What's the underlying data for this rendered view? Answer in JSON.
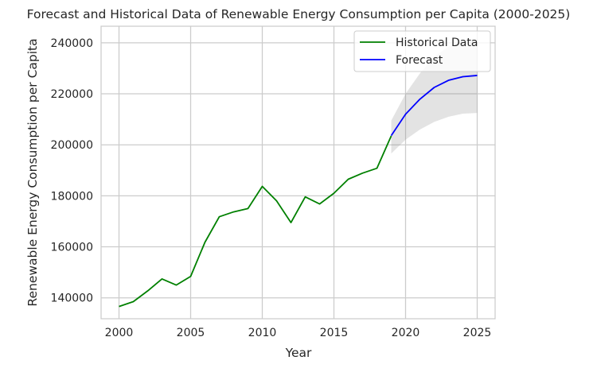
{
  "chart_data": {
    "type": "line",
    "title": "Forecast and Historical Data of Renewable Energy Consumption per Capita (2000-2025)",
    "xlabel": "Year",
    "ylabel": "Renewable Energy Consumption per Capita",
    "xlim": [
      1998.75,
      2026.25
    ],
    "ylim": [
      131800,
      246500
    ],
    "xticks": [
      2000,
      2005,
      2010,
      2015,
      2020,
      2025
    ],
    "yticks": [
      140000,
      160000,
      180000,
      200000,
      220000,
      240000
    ],
    "xtick_labels": [
      "2000",
      "2005",
      "2010",
      "2015",
      "2020",
      "2025"
    ],
    "ytick_labels": [
      "140000",
      "160000",
      "180000",
      "200000",
      "220000",
      "240000"
    ],
    "grid": true,
    "legend_position": "top-right",
    "series": [
      {
        "name": "Historical Data",
        "color": "#008000",
        "x": [
          2000,
          2001,
          2002,
          2003,
          2004,
          2005,
          2006,
          2007,
          2008,
          2009,
          2010,
          2011,
          2012,
          2013,
          2014,
          2015,
          2016,
          2017,
          2018,
          2019
        ],
        "y": [
          136600,
          138500,
          142700,
          147400,
          145000,
          148400,
          161800,
          171800,
          173700,
          175000,
          183700,
          178000,
          169500,
          179600,
          176800,
          181000,
          186500,
          188900,
          190800,
          203500
        ]
      },
      {
        "name": "Forecast",
        "color": "#0000ff",
        "x": [
          2019,
          2020,
          2021,
          2022,
          2023,
          2024,
          2025
        ],
        "y": [
          203600,
          212000,
          217900,
          222500,
          225300,
          226700,
          227200
        ],
        "band_lower": [
          196600,
          202000,
          206000,
          209000,
          211000,
          212200,
          212500
        ],
        "band_upper": [
          209500,
          220000,
          228000,
          234500,
          238500,
          240500,
          241500
        ],
        "band_color": "#808080"
      }
    ]
  }
}
